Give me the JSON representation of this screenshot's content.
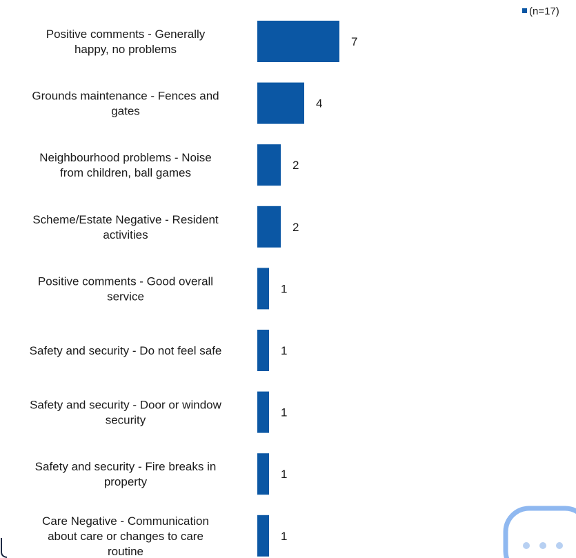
{
  "legend": {
    "label": "(n=17)",
    "color": "#0b57a4"
  },
  "chart_data": {
    "type": "bar",
    "orientation": "horizontal",
    "categories": [
      [
        "Positive comments - Generally",
        "happy, no problems"
      ],
      [
        "Grounds maintenance - Fences and",
        "gates"
      ],
      [
        "Neighbourhood problems - Noise",
        "from children, ball games"
      ],
      [
        "Scheme/Estate Negative - Resident",
        "activities"
      ],
      [
        "Positive comments - Good overall",
        "service"
      ],
      [
        "Safety and security - Do not feel safe"
      ],
      [
        "Safety and security - Door or window",
        "security"
      ],
      [
        "Safety and security - Fire breaks in",
        "property"
      ],
      [
        "Care Negative - Communication",
        "about care or changes to care",
        "routine"
      ]
    ],
    "series": [
      {
        "name": "(n=17)",
        "values": [
          7,
          4,
          2,
          2,
          1,
          1,
          1,
          1,
          1
        ]
      }
    ],
    "xlim": [
      0,
      7
    ],
    "grid": false,
    "legend_position": "top-right",
    "bar_color": "#0b57a4"
  }
}
